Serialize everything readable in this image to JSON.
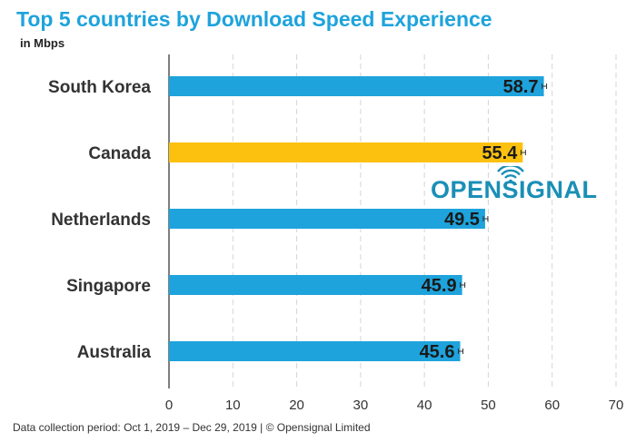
{
  "header": {
    "title": "Top 5 countries by Download Speed Experience",
    "subtitle": "in Mbps"
  },
  "footer": {
    "note": "Data collection period: Oct 1, 2019 – Dec 29, 2019 | © Opensignal Limited"
  },
  "logo": {
    "text": "OPENSIGNAL",
    "color": "#1a8fb6"
  },
  "chart_data": {
    "type": "bar",
    "orientation": "horizontal",
    "title": "Top 5 countries by Download Speed Experience",
    "subtitle": "in Mbps",
    "categories": [
      "South Korea",
      "Canada",
      "Netherlands",
      "Singapore",
      "Australia"
    ],
    "values": [
      58.7,
      55.4,
      49.5,
      45.9,
      45.6
    ],
    "value_labels": [
      "58.7",
      "55.4",
      "49.5",
      "45.9",
      "45.6"
    ],
    "error_bars": true,
    "highlight_category": "Canada",
    "bar_color": "#1ea3dc",
    "highlight_color": "#fcc10f",
    "xlim": [
      0,
      70
    ],
    "xticks": [
      "0",
      "10",
      "20",
      "30",
      "40",
      "50",
      "60",
      "70"
    ],
    "grid": "vertical dashed",
    "legend": "none"
  }
}
